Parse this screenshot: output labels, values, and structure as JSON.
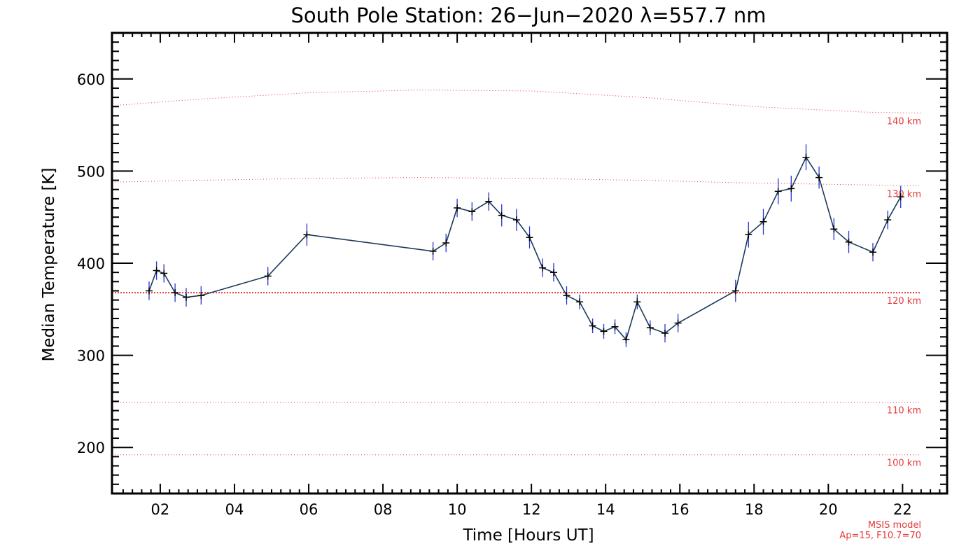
{
  "chart_data": {
    "type": "line",
    "title": "South Pole Station: 26−Jun−2020 λ=557.7 nm",
    "xlabel": "Time [Hours UT]",
    "ylabel": "Median Temperature [K]",
    "xlim": [
      0.7,
      23.2
    ],
    "ylim": [
      150,
      650
    ],
    "x_ticks": [
      "02",
      "04",
      "06",
      "08",
      "10",
      "12",
      "14",
      "16",
      "18",
      "20",
      "22"
    ],
    "x_tick_values": [
      2,
      4,
      6,
      8,
      10,
      12,
      14,
      16,
      18,
      20,
      22
    ],
    "y_ticks": [
      "200",
      "300",
      "400",
      "500",
      "600"
    ],
    "y_tick_values": [
      200,
      300,
      400,
      500,
      600
    ],
    "grid": false,
    "series": [
      {
        "color": "#1b3a5a",
        "marker": "plus",
        "error_color": "#2633d6",
        "x": [
          1.7,
          1.9,
          2.1,
          2.4,
          2.7,
          3.1,
          4.9,
          5.95,
          9.35,
          9.7,
          10.0,
          10.4,
          10.85,
          11.2,
          11.6,
          11.95,
          12.3,
          12.6,
          12.95,
          13.3,
          13.65,
          13.95,
          14.25,
          14.55,
          14.85,
          15.2,
          15.6,
          15.95,
          17.5,
          17.85,
          18.25,
          18.65,
          19.0,
          19.4,
          19.75,
          20.15,
          20.55,
          21.2,
          21.6,
          21.95
        ],
        "y": [
          370,
          392,
          389,
          368,
          363,
          365,
          386,
          431,
          413,
          422,
          460,
          456,
          467,
          452,
          447,
          428,
          395,
          390,
          365,
          358,
          332,
          326,
          331,
          317,
          358,
          330,
          324,
          335,
          370,
          431,
          445,
          478,
          481,
          515,
          493,
          437,
          423,
          412,
          447,
          472
        ],
        "err": [
          10,
          10,
          10,
          10,
          10,
          10,
          10,
          12,
          10,
          10,
          10,
          10,
          10,
          12,
          12,
          12,
          10,
          10,
          10,
          8,
          8,
          8,
          8,
          8,
          8,
          8,
          10,
          10,
          12,
          14,
          14,
          14,
          14,
          14,
          12,
          12,
          12,
          10,
          10,
          12
        ]
      }
    ],
    "msis_reference": {
      "color": "#e8383a",
      "lines": [
        {
          "label": "140 km",
          "x": [
            0.7,
            3,
            6,
            9,
            12,
            15,
            18,
            21,
            22.5
          ],
          "y": [
            571,
            578,
            585,
            588,
            587,
            580,
            570,
            564,
            563
          ]
        },
        {
          "label": "130 km",
          "x": [
            0.7,
            3,
            6,
            9,
            12,
            15,
            18,
            21,
            22.5
          ],
          "y": [
            488,
            490,
            492,
            493,
            492,
            490,
            487,
            485,
            484
          ]
        },
        {
          "label": "120 km",
          "x": [
            0.7,
            22.5
          ],
          "y": [
            368,
            368
          ],
          "bold": true
        },
        {
          "label": "110 km",
          "x": [
            0.7,
            22.5
          ],
          "y": [
            249,
            249
          ]
        },
        {
          "label": "100 km",
          "x": [
            0.7,
            22.5
          ],
          "y": [
            192,
            192
          ]
        }
      ],
      "note_line1": "MSIS model",
      "note_line2": "Ap=15, F10.7=70"
    }
  }
}
